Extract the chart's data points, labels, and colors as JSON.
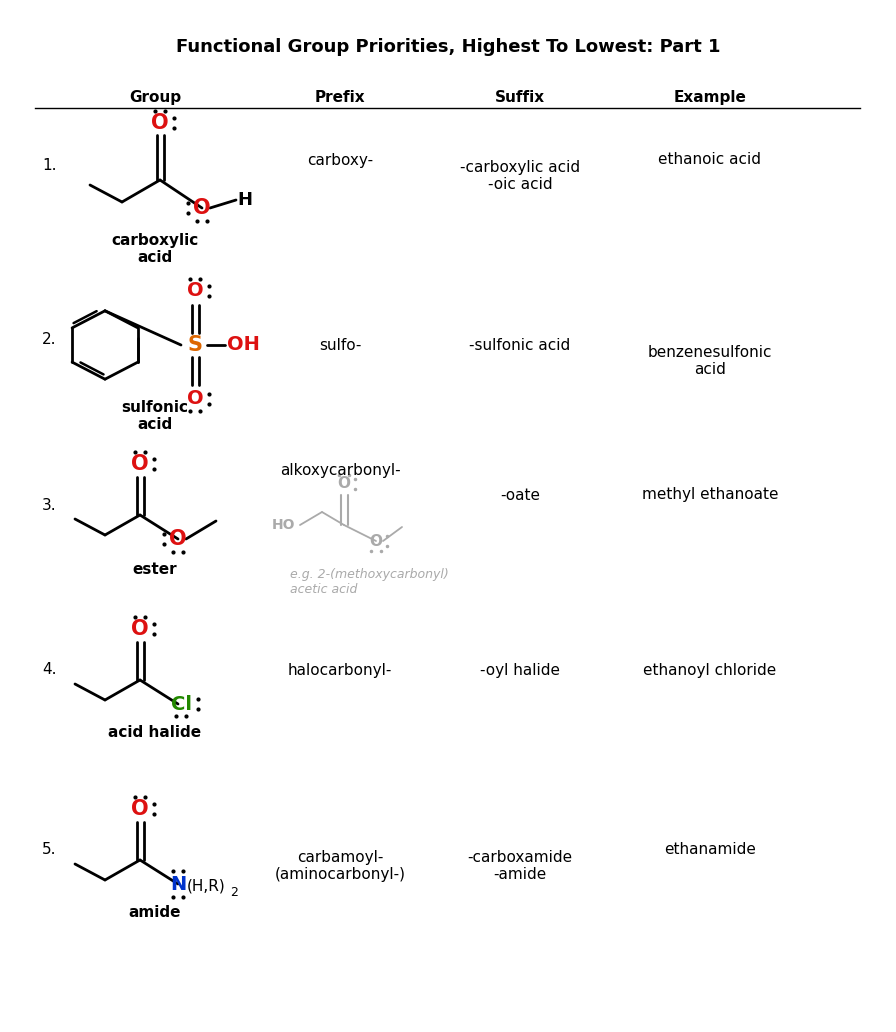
{
  "title": "Functional Group Priorities, Highest To Lowest: Part 1",
  "headers": [
    "Group",
    "Prefix",
    "Suffix",
    "Example"
  ],
  "bg_color": "#ffffff",
  "text_color": "#000000",
  "red_color": "#dd1111",
  "orange_color": "#dd6600",
  "green_color": "#228800",
  "blue_color": "#0033cc",
  "gray_color": "#aaaaaa",
  "rows": [
    {
      "number": "1.",
      "group_name": "carboxylic\nacid",
      "prefix": "carboxy-",
      "suffix": "-carboxylic acid\n-oic acid",
      "example": "ethanoic acid"
    },
    {
      "number": "2.",
      "group_name": "sulfonic\nacid",
      "prefix": "sulfo-",
      "suffix": "-sulfonic acid",
      "example": "benzenesulfonic\nacid"
    },
    {
      "number": "3.",
      "group_name": "ester",
      "prefix": "alkoxycarbonyl-",
      "suffix": "-oate",
      "example": "methyl ethanoate"
    },
    {
      "number": "4.",
      "group_name": "acid halide",
      "prefix": "halocarbonyl-",
      "suffix": "-oyl halide",
      "example": "ethanoyl chloride"
    },
    {
      "number": "5.",
      "group_name": "amide",
      "prefix": "carbamoyl-\n(aminocarbonyl-)",
      "suffix": "-carboxamide\n-amide",
      "example": "ethanamide"
    }
  ]
}
